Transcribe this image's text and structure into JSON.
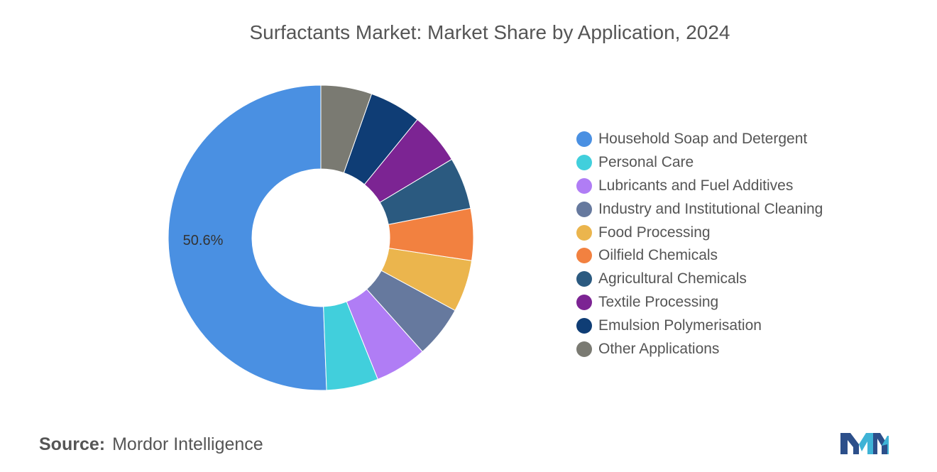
{
  "chart_data": {
    "type": "pie",
    "title": "Surfactants Market: Market Share by Application, 2024",
    "categories": [
      "Household Soap and Detergent",
      "Personal Care",
      "Lubricants and Fuel Additives",
      "Industry and Institutional Cleaning",
      "Food Processing",
      "Oilfield Chemicals",
      "Agricultural Chemicals",
      "Textile Processing",
      "Emulsion Polymerisation",
      "Other Applications"
    ],
    "values": [
      50.6,
      5.5,
      5.5,
      5.5,
      5.5,
      5.5,
      5.5,
      5.5,
      5.5,
      5.4
    ],
    "colors": [
      "#4a90e2",
      "#41cfdc",
      "#b07df5",
      "#66799e",
      "#ebb54d",
      "#f28140",
      "#2b5a80",
      "#7c2493",
      "#0f3d75",
      "#7a7a72"
    ],
    "data_labels": [
      {
        "index": 0,
        "text": "50.6%"
      }
    ],
    "legend_position": "right",
    "donut": true
  },
  "source": {
    "label": "Source:",
    "value": "Mordor Intelligence"
  },
  "logo": {
    "icon": "mordor-intelligence-logo",
    "colors": [
      "#2c4f8a",
      "#3fb3d6"
    ]
  }
}
